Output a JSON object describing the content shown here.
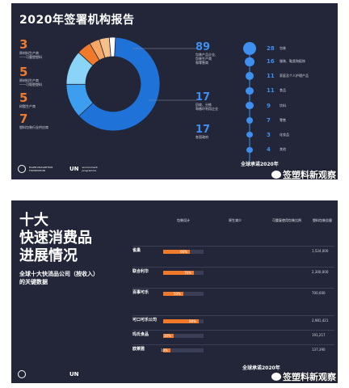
{
  "panel1": {
    "title": "2020年签署机构报告",
    "left_items": [
      {
        "num": "3",
        "line1": "原材料生产商",
        "line2": "——可重塑塑料"
      },
      {
        "num": "5",
        "line1": "原材料生产商",
        "line2": "——可堆肥塑料"
      },
      {
        "num": "5",
        "line1": "树脂生产商",
        "line2": ""
      },
      {
        "num": "7",
        "line1": "塑料包装行业供应商",
        "line2": ""
      }
    ],
    "right_items": [
      {
        "num": "89",
        "line1": "包装产品企业、",
        "line2": "包装生产商",
        "line3": "和零售商"
      },
      {
        "num": "17",
        "line1": "回收、分拣",
        "line2": "和循环利用企业",
        "line3": ""
      },
      {
        "num": "17",
        "line1": "各国政府",
        "line2": "",
        "line3": ""
      }
    ],
    "circles": [
      {
        "num": "28",
        "label": "包装"
      },
      {
        "num": "16",
        "label": "服装、鞋类和配饰"
      },
      {
        "num": "11",
        "label": "家庭及个人护理产品"
      },
      {
        "num": "11",
        "label": "食品"
      },
      {
        "num": "9",
        "label": "饮料"
      },
      {
        "num": "7",
        "label": "零售"
      },
      {
        "num": "3",
        "label": "化妆品"
      },
      {
        "num": "4",
        "label": "其他"
      }
    ],
    "footer_left": "ELLEN MACARTHUR FOUNDATION",
    "footer_un": "UN",
    "footer_un_sub": "environment programme",
    "footer_right": "全球承诺2020年"
  },
  "panel2": {
    "title_lines": [
      "十大",
      "快速消费品",
      "进展情况"
    ],
    "subtitle_lines": [
      "全球十大快消品公司（按收入）",
      "的关键数据"
    ],
    "headers": [
      "包装设计",
      "原生减少",
      "可重复使用包装比例",
      "塑料包装总量"
    ],
    "footer_un": "UN",
    "footer_right": "全球承诺2020年"
  },
  "watermark": "签塑料新观察",
  "chart_data": {
    "type": "table",
    "donut": {
      "type": "pie",
      "slices": [
        {
          "label": "包装产品企业、包装生产商和零售商",
          "value": 89,
          "color": "#1f73d8"
        },
        {
          "label": "回收、分拣和循环利用企业",
          "value": 17,
          "color": "#3d9ef0"
        },
        {
          "label": "各国政府",
          "value": 17,
          "color": "#8ad4f8"
        },
        {
          "label": "塑料包装行业供应商",
          "value": 7,
          "color": "#f07a2a"
        },
        {
          "label": "树脂生产商",
          "value": 5,
          "color": "#f5a766"
        },
        {
          "label": "原材料生产商——可堆肥塑料",
          "value": 5,
          "color": "#f7c08a"
        },
        {
          "label": "原材料生产商——可重塑塑料",
          "value": 3,
          "color": "#ffffff"
        }
      ]
    },
    "companies": [
      {
        "name": "雀巢",
        "pct": 66,
        "pct_label": "66%",
        "total": "1,524,000"
      },
      {
        "name": "联合利华",
        "pct": 76,
        "pct_label": "76%",
        "total": "2,300,000"
      },
      {
        "name": "百事可乐",
        "pct": 50,
        "pct_label": "50%",
        "total": "700,000"
      },
      {
        "name": "可口可乐公司",
        "pct": 88,
        "pct_label": "88%",
        "total": "2,981,421"
      },
      {
        "name": "玛氏食品",
        "pct": 26,
        "pct_label": "26%",
        "total": "191,217"
      },
      {
        "name": "欧莱雅",
        "pct": 18,
        "pct_label": "18%",
        "total": "137,390"
      }
    ]
  }
}
